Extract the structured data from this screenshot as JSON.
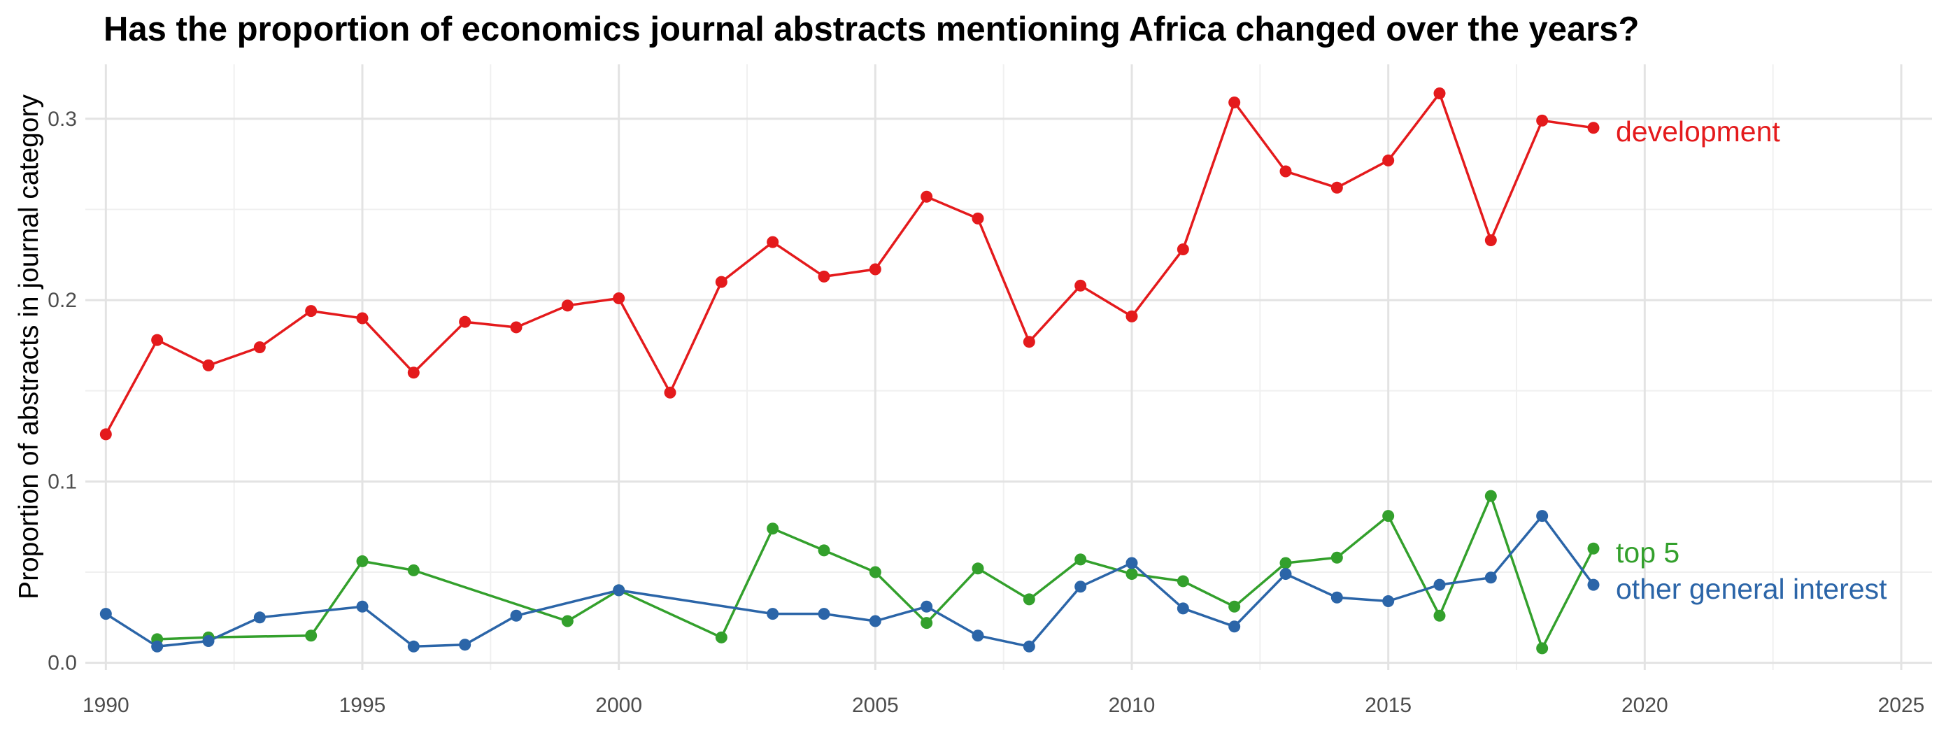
{
  "title": "Has the proportion of economics journal abstracts mentioning Africa changed over the years?",
  "chart_data": {
    "type": "line",
    "title": "Has the proportion of economics journal abstracts mentioning Africa changed over the years?",
    "xlabel": "",
    "ylabel": "Proportion of abstracts in journal category",
    "xlim": [
      1989.6,
      2025.6
    ],
    "ylim": [
      -0.004,
      0.33
    ],
    "x_ticks": [
      1990,
      1995,
      2000,
      2005,
      2010,
      2015,
      2020,
      2025
    ],
    "y_ticks": [
      0.0,
      0.1,
      0.2,
      0.3
    ],
    "y_tick_labels": [
      "0.0",
      "0.1",
      "0.2",
      "0.3"
    ],
    "grid": true,
    "legend": "direct labels at line ends (right)",
    "series": [
      {
        "name": "development",
        "color": "#E41A1C",
        "points": [
          [
            1990,
            0.126
          ],
          [
            1991,
            0.178
          ],
          [
            1992,
            0.164
          ],
          [
            1993,
            0.174
          ],
          [
            1994,
            0.194
          ],
          [
            1995,
            0.19
          ],
          [
            1996,
            0.16
          ],
          [
            1997,
            0.188
          ],
          [
            1998,
            0.185
          ],
          [
            1999,
            0.197
          ],
          [
            2000,
            0.201
          ],
          [
            2001,
            0.149
          ],
          [
            2002,
            0.21
          ],
          [
            2003,
            0.232
          ],
          [
            2004,
            0.213
          ],
          [
            2005,
            0.217
          ],
          [
            2006,
            0.257
          ],
          [
            2007,
            0.245
          ],
          [
            2008,
            0.177
          ],
          [
            2009,
            0.208
          ],
          [
            2010,
            0.191
          ],
          [
            2011,
            0.228
          ],
          [
            2012,
            0.309
          ],
          [
            2013,
            0.271
          ],
          [
            2014,
            0.262
          ],
          [
            2015,
            0.277
          ],
          [
            2016,
            0.314
          ],
          [
            2017,
            0.233
          ],
          [
            2018,
            0.299
          ],
          [
            2019,
            0.295
          ]
        ]
      },
      {
        "name": "top 5",
        "color": "#33A02C",
        "points": [
          [
            1991,
            0.013
          ],
          [
            1992,
            0.014
          ],
          [
            1994,
            0.015
          ],
          [
            1995,
            0.056
          ],
          [
            1996,
            0.051
          ],
          [
            1999,
            0.023
          ],
          [
            2000,
            0.04
          ],
          [
            2002,
            0.014
          ],
          [
            2003,
            0.074
          ],
          [
            2004,
            0.062
          ],
          [
            2005,
            0.05
          ],
          [
            2006,
            0.022
          ],
          [
            2007,
            0.052
          ],
          [
            2008,
            0.035
          ],
          [
            2009,
            0.057
          ],
          [
            2010,
            0.049
          ],
          [
            2011,
            0.045
          ],
          [
            2012,
            0.031
          ],
          [
            2013,
            0.055
          ],
          [
            2014,
            0.058
          ],
          [
            2015,
            0.081
          ],
          [
            2016,
            0.026
          ],
          [
            2017,
            0.092
          ],
          [
            2018,
            0.008
          ],
          [
            2019,
            0.063
          ]
        ]
      },
      {
        "name": "other general interest",
        "color": "#2B65A8",
        "points": [
          [
            1990,
            0.027
          ],
          [
            1991,
            0.009
          ],
          [
            1992,
            0.012
          ],
          [
            1993,
            0.025
          ],
          [
            1995,
            0.031
          ],
          [
            1996,
            0.009
          ],
          [
            1997,
            0.01
          ],
          [
            1998,
            0.026
          ],
          [
            2000,
            0.04
          ],
          [
            2003,
            0.027
          ],
          [
            2004,
            0.027
          ],
          [
            2005,
            0.023
          ],
          [
            2006,
            0.031
          ],
          [
            2007,
            0.015
          ],
          [
            2008,
            0.009
          ],
          [
            2009,
            0.042
          ],
          [
            2010,
            0.055
          ],
          [
            2011,
            0.03
          ],
          [
            2012,
            0.02
          ],
          [
            2013,
            0.049
          ],
          [
            2014,
            0.036
          ],
          [
            2015,
            0.034
          ],
          [
            2016,
            0.043
          ],
          [
            2017,
            0.047
          ],
          [
            2018,
            0.081
          ],
          [
            2019,
            0.043
          ]
        ]
      }
    ]
  }
}
